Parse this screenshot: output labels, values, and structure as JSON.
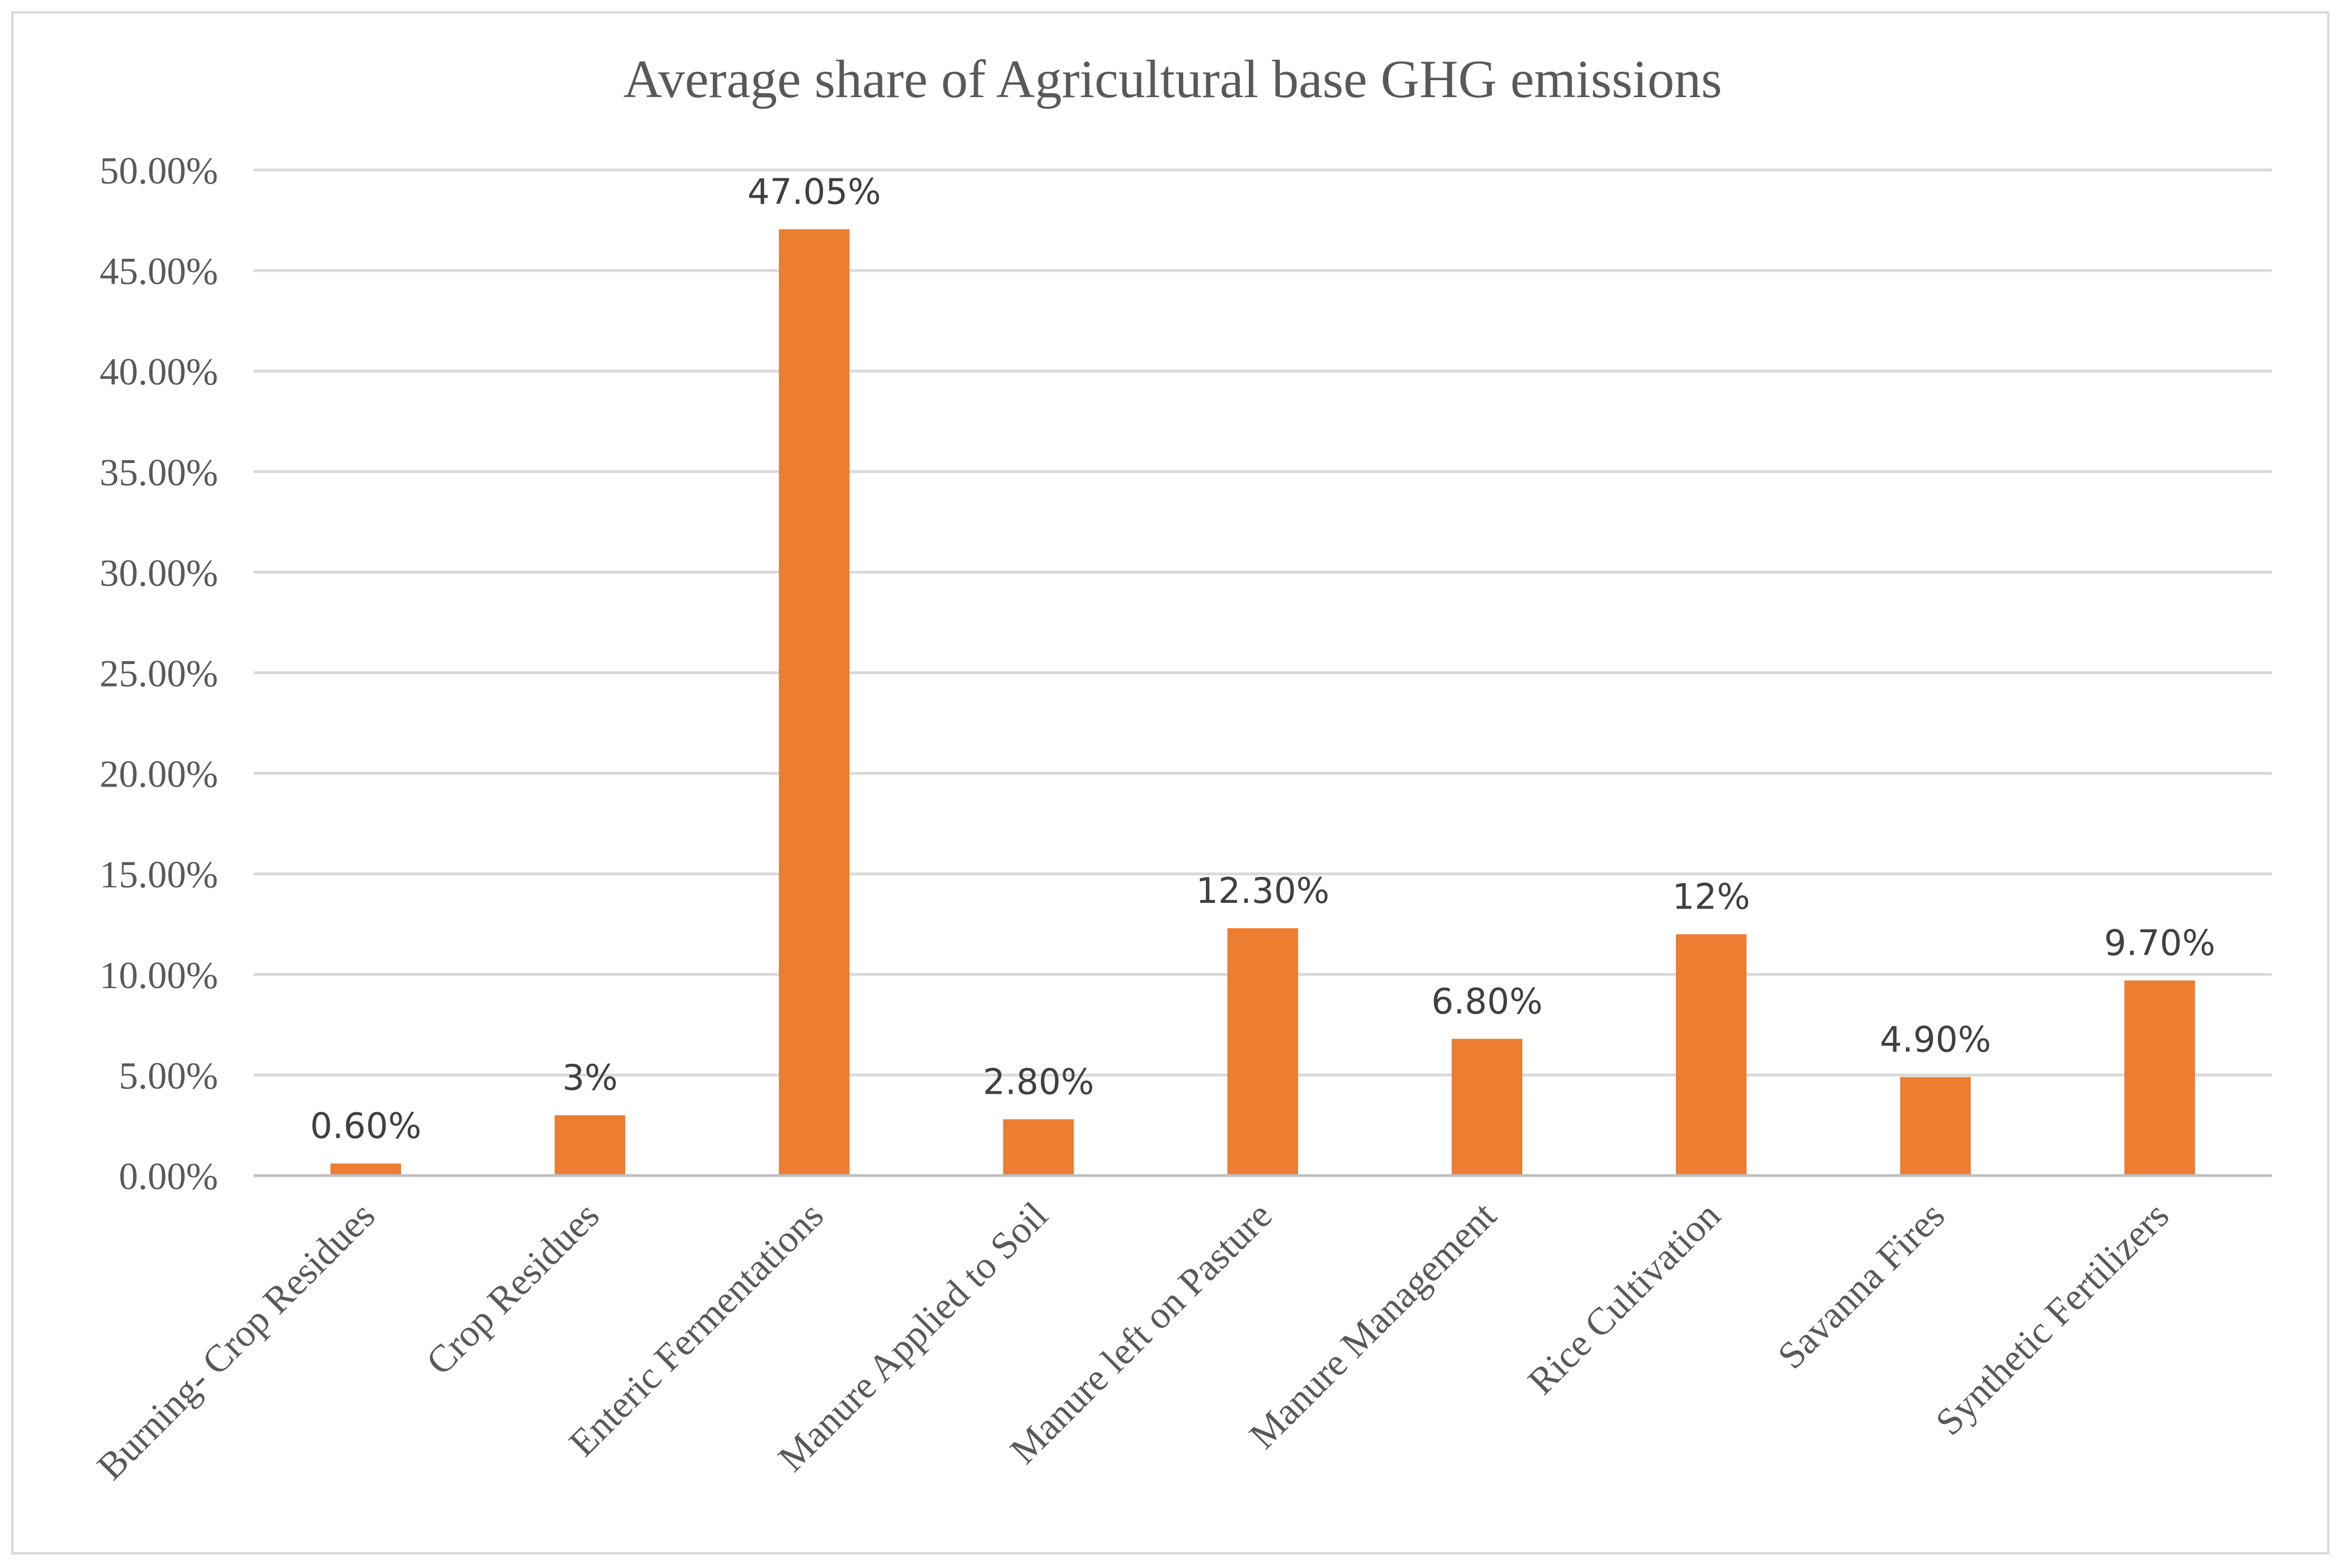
{
  "chart_data": {
    "type": "bar",
    "title": "Average share of Agricultural base GHG emissions",
    "categories": [
      "Burning- Crop Residues",
      "Crop Residues",
      "Enteric Fermentations",
      "Manure Applied to Soil",
      "Manure left on Pasture",
      "Manure Management",
      "Rice Cultivation",
      "Savanna Fires",
      "Synthetic Fertilizers"
    ],
    "values": [
      0.6,
      3,
      47.05,
      2.8,
      12.3,
      6.8,
      12,
      4.9,
      9.7
    ],
    "data_labels": [
      "0.60%",
      "3%",
      "47.05%",
      "2.80%",
      "12.30%",
      "6.80%",
      "12%",
      "4.90%",
      "9.70%"
    ],
    "yticks": [
      0,
      5,
      10,
      15,
      20,
      25,
      30,
      35,
      40,
      45,
      50
    ],
    "ytick_labels": [
      "0.00%",
      "5.00%",
      "10.00%",
      "15.00%",
      "20.00%",
      "25.00%",
      "30.00%",
      "35.00%",
      "40.00%",
      "45.00%",
      "50.00%"
    ],
    "ylim": [
      0,
      50
    ],
    "xlabel": "",
    "ylabel": "",
    "grid": true,
    "legend": "none",
    "bar_color": "#ed7d31"
  }
}
